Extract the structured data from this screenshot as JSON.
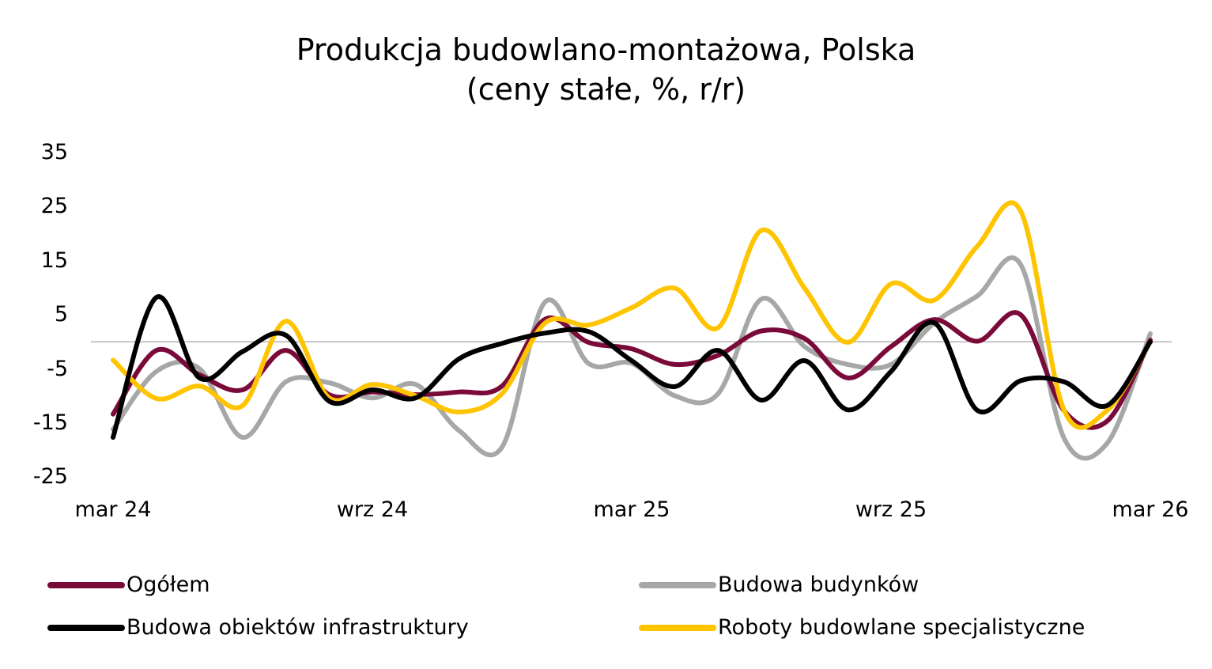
{
  "title": {
    "line1": "Produkcja budowlano-montażowa, Polska",
    "line2": "(ceny stałe, %, r/r)"
  },
  "colors": {
    "ogolem": "#7a0a3a",
    "budynki": "#a6a8a8",
    "infrastruktura": "#000000",
    "specjalistyczne": "#ffc400",
    "zero_line": "#999999"
  },
  "legend": [
    {
      "key": "ogolem",
      "label": "Ogółem"
    },
    {
      "key": "budynki",
      "label": "Budowa budynków"
    },
    {
      "key": "infrastruktura",
      "label": "Budowa obiektów infrastruktury"
    },
    {
      "key": "specjalistyczne",
      "label": "Roboty budowlane specjalistyczne"
    }
  ],
  "chart_data": {
    "type": "line",
    "title": "Produkcja budowlano-montażowa, Polska (ceny stałe, %, r/r)",
    "xlabel": "",
    "ylabel": "",
    "ylim": [
      -25,
      35
    ],
    "yticks": [
      35,
      25,
      15,
      5,
      -5,
      -15,
      -25
    ],
    "xtick_labels": [
      "mar 24",
      "wrz 24",
      "mar 25",
      "wrz 25",
      "mar 26"
    ],
    "xtick_indices": [
      0,
      6,
      12,
      18,
      24
    ],
    "grid": false,
    "zero_line": true,
    "legend_position": "bottom",
    "smooth": true,
    "x": [
      "mar 24",
      "kwi 24",
      "maj 24",
      "cze 24",
      "lip 24",
      "sie 24",
      "wrz 24",
      "paź 24",
      "lis 24",
      "gru 24",
      "sty 25",
      "lut 25",
      "mar 25",
      "kwi 25",
      "maj 25",
      "cze 25",
      "lip 25",
      "sie 25",
      "wrz 25",
      "paź 25",
      "lis 25",
      "gru 25",
      "sty 26",
      "lut 26",
      "mar 26"
    ],
    "series": [
      {
        "key": "ogolem",
        "name": "Ogółem",
        "values": [
          -13.4,
          -1.6,
          -6.1,
          -8.9,
          -1.6,
          -9.8,
          -9.3,
          -9.8,
          -9.3,
          -8.2,
          4.2,
          -0.1,
          -1.3,
          -4.2,
          -2.5,
          2.0,
          0.6,
          -6.7,
          -0.9,
          4.1,
          0.1,
          5.0,
          -12.7,
          -14.7,
          0.3
        ]
      },
      {
        "key": "budynki",
        "name": "Budowa budynków",
        "values": [
          -16.2,
          -5.5,
          -5.0,
          -17.7,
          -7.4,
          -7.6,
          -10.4,
          -7.9,
          -16.4,
          -19.5,
          7.4,
          -4.0,
          -4.0,
          -10.0,
          -9.6,
          7.9,
          -0.9,
          -4.2,
          -4.2,
          3.5,
          8.5,
          14.3,
          -17.8,
          -18.8,
          1.5
        ]
      },
      {
        "key": "infrastruktura",
        "name": "Budowa obiektów infrastruktury",
        "values": [
          -17.7,
          8.2,
          -6.7,
          -1.8,
          1.2,
          -11.0,
          -8.9,
          -10.4,
          -3.2,
          -0.3,
          1.6,
          1.9,
          -3.5,
          -8.3,
          -1.6,
          -10.8,
          -3.5,
          -12.6,
          -5.5,
          3.5,
          -12.7,
          -7.2,
          -7.4,
          -11.8,
          0.0
        ]
      },
      {
        "key": "specjalistyczne",
        "name": "Roboty budowlane specjalistyczne",
        "values": [
          -3.4,
          -10.5,
          -8.2,
          -11.8,
          3.8,
          -10.4,
          -7.9,
          -10.0,
          -13.0,
          -9.6,
          3.5,
          3.1,
          6.3,
          9.9,
          2.6,
          20.6,
          9.9,
          -0.1,
          10.7,
          7.7,
          17.7,
          24.2,
          -12.6,
          -12.7,
          0.0
        ]
      }
    ]
  }
}
